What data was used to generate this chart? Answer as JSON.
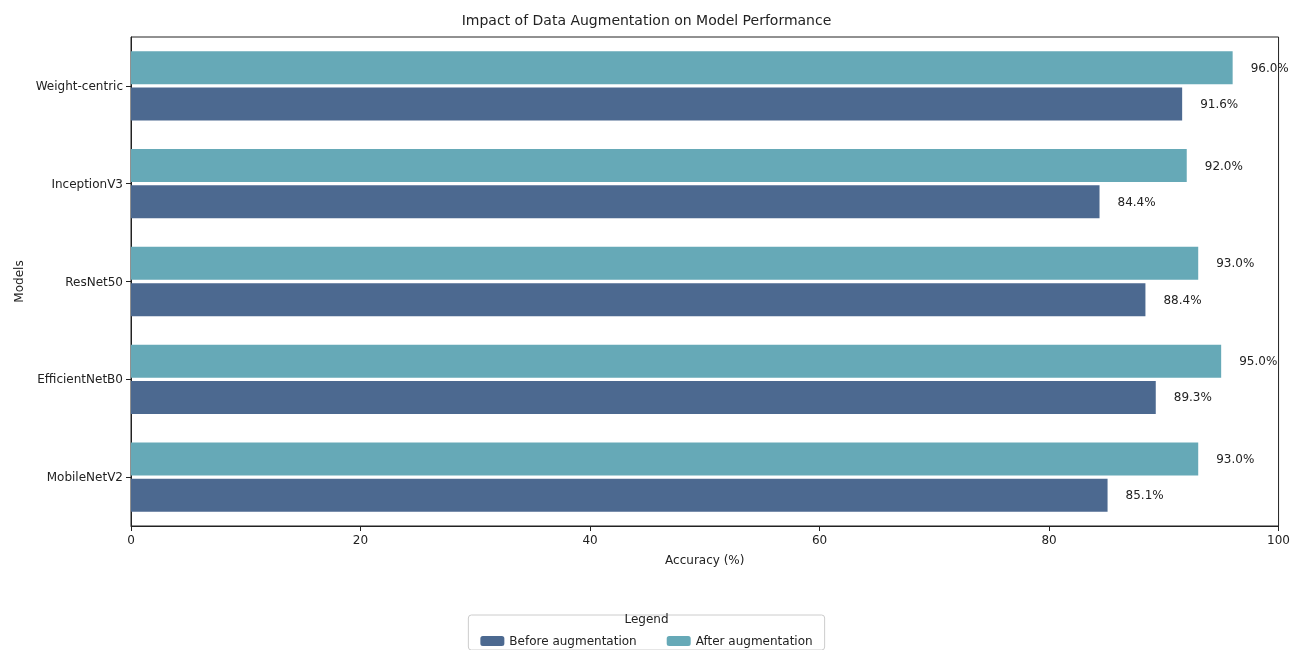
{
  "chart_data": {
    "type": "bar",
    "orientation": "horizontal",
    "title": "Impact of Data Augmentation on Model Performance",
    "xlabel": "Accuracy (%)",
    "ylabel": "Models",
    "legend_title": "Legend",
    "legend": "bottom",
    "grid": false,
    "categories": [
      "Weight-centric",
      "InceptionV3",
      "ResNet50",
      "EfficientNetB0",
      "MobileNetV2"
    ],
    "xlim": [
      0,
      100
    ],
    "xticks": [
      0,
      20,
      40,
      60,
      80,
      100
    ],
    "series": [
      {
        "name": "Before augmentation",
        "color": "#4c6990",
        "values": [
          91.6,
          84.4,
          88.4,
          89.3,
          85.1
        ],
        "value_labels": [
          "91.6%",
          "84.4%",
          "88.4%",
          "89.3%",
          "85.1%"
        ]
      },
      {
        "name": "After augmentation",
        "color": "#66a9b7",
        "values": [
          96.0,
          92.0,
          93.0,
          95.0,
          93.0
        ],
        "value_labels": [
          "96.0%",
          "92.0%",
          "93.0%",
          "95.0%",
          "93.0%"
        ]
      }
    ]
  }
}
